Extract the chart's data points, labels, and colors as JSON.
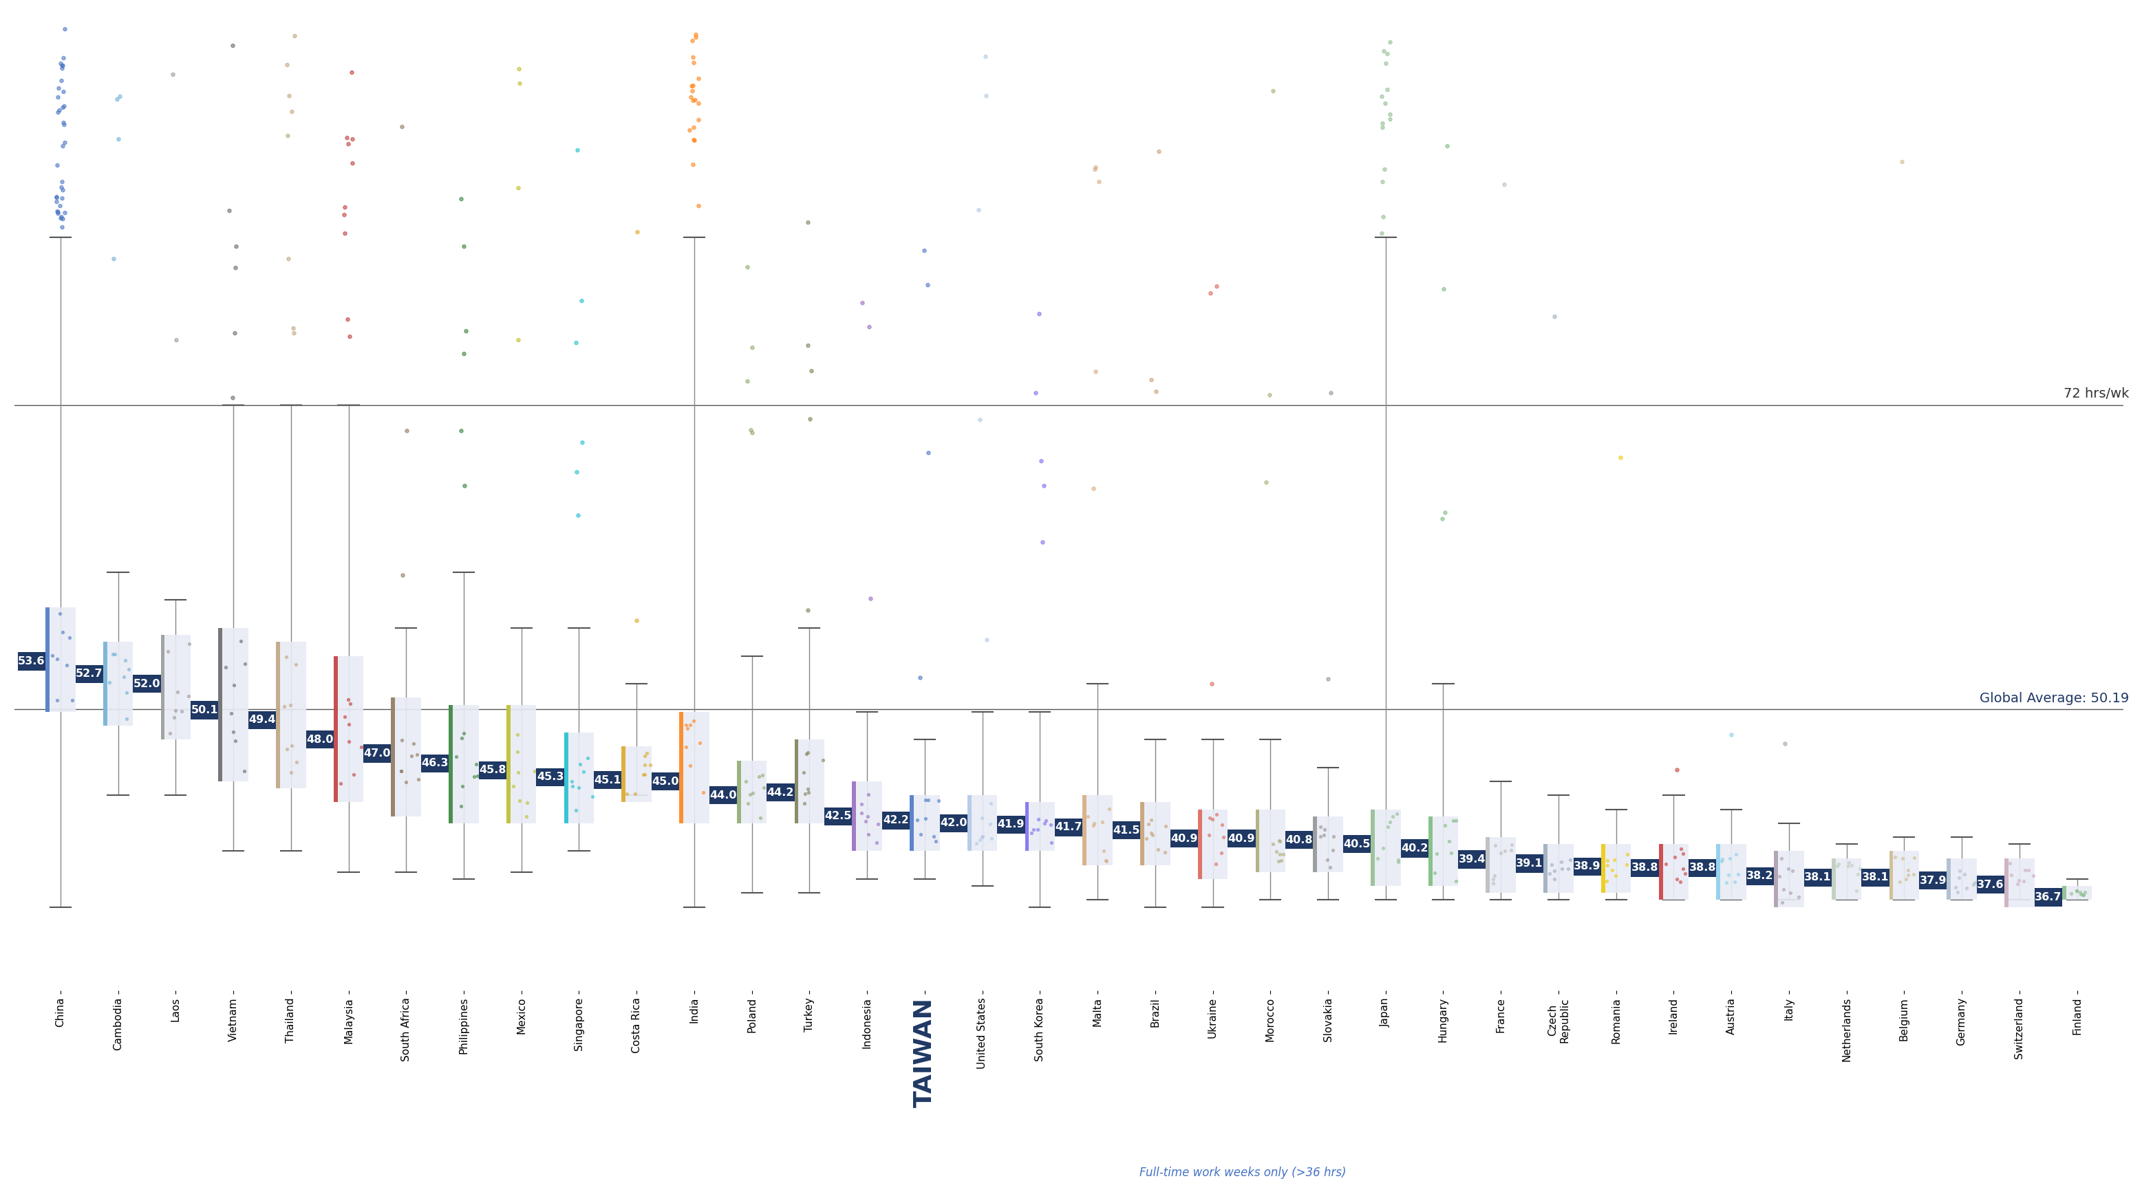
{
  "countries": [
    "China",
    "Cambodia",
    "Laos",
    "Vietnam",
    "Thailand",
    "Malaysia",
    "South Africa",
    "Philippines",
    "Mexico",
    "Singapore",
    "Costa Rica",
    "India",
    "Poland",
    "Turkey",
    "Indonesia",
    "TAIWAN",
    "United States",
    "South Korea",
    "Malta",
    "Brazil",
    "Ukraine",
    "Morocco",
    "Slovakia",
    "Japan",
    "Hungary",
    "France",
    "Czech\nRepublic",
    "Romania",
    "Ireland",
    "Austria",
    "Italy",
    "Netherlands",
    "Belgium",
    "Germany",
    "Switzerland",
    "Finland"
  ],
  "medians": [
    53.6,
    52.7,
    52.0,
    50.1,
    49.4,
    48.0,
    47.0,
    46.3,
    45.8,
    45.3,
    45.1,
    45.0,
    44.0,
    44.2,
    42.5,
    42.2,
    42.0,
    41.9,
    41.7,
    41.5,
    40.9,
    40.9,
    40.8,
    40.5,
    40.2,
    39.4,
    39.1,
    38.9,
    38.8,
    38.8,
    38.2,
    38.1,
    38.1,
    37.9,
    37.6,
    36.7
  ],
  "q1": [
    50.0,
    49.0,
    48.0,
    45.0,
    44.5,
    43.5,
    42.5,
    42.0,
    42.0,
    42.0,
    43.5,
    42.0,
    42.0,
    42.0,
    40.0,
    40.0,
    40.0,
    40.0,
    39.0,
    39.0,
    38.0,
    38.5,
    38.5,
    37.5,
    37.5,
    37.0,
    37.0,
    37.0,
    36.5,
    36.5,
    36.0,
    36.5,
    36.5,
    36.5,
    36.0,
    36.5
  ],
  "q3": [
    57.5,
    55.0,
    55.5,
    56.0,
    55.0,
    54.0,
    51.0,
    50.5,
    50.5,
    48.5,
    47.5,
    50.0,
    46.5,
    48.0,
    45.0,
    44.0,
    44.0,
    43.5,
    44.0,
    43.5,
    43.0,
    43.0,
    42.5,
    43.0,
    42.5,
    41.0,
    40.5,
    40.5,
    40.5,
    40.5,
    40.0,
    39.5,
    40.0,
    39.5,
    39.5,
    37.5
  ],
  "whisker_low": [
    36.0,
    44.0,
    44.0,
    40.0,
    40.0,
    38.5,
    38.5,
    38.0,
    38.5,
    40.0,
    44.0,
    36.0,
    37.0,
    37.0,
    38.0,
    38.0,
    37.5,
    36.0,
    36.5,
    36.0,
    36.0,
    36.5,
    36.5,
    36.5,
    36.5,
    36.5,
    36.5,
    36.5,
    36.5,
    36.5,
    36.5,
    36.5,
    36.5,
    36.5,
    36.5,
    36.5
  ],
  "whisker_high": [
    84.0,
    60.0,
    58.0,
    72.0,
    72.0,
    72.0,
    56.0,
    60.0,
    56.0,
    56.0,
    52.0,
    84.0,
    54.0,
    56.0,
    50.0,
    48.0,
    50.0,
    50.0,
    52.0,
    48.0,
    48.0,
    48.0,
    46.0,
    84.0,
    52.0,
    45.0,
    44.0,
    43.0,
    44.0,
    43.0,
    42.0,
    40.5,
    41.0,
    41.0,
    40.5,
    38.0
  ],
  "colors": [
    "#4472C4",
    "#6BAED6",
    "#969696",
    "#636363",
    "#BDA27A",
    "#C03333",
    "#8B7355",
    "#2E7D32",
    "#BCBC22",
    "#17BECF",
    "#DAA520",
    "#FF7F0E",
    "#8CA868",
    "#7B7B50",
    "#9467BD",
    "#4472C4",
    "#AEC7E8",
    "#7B68EE",
    "#D6A87A",
    "#C69C6D",
    "#DC6050",
    "#AAAA70",
    "#909090",
    "#8FBC8F",
    "#77BB77",
    "#BBBBBB",
    "#99AABB",
    "#EEC900",
    "#CC3333",
    "#87CEEB",
    "#AA99AA",
    "#BBCCBB",
    "#CCBB88",
    "#AABBCC",
    "#CCAABB",
    "#88BB88"
  ],
  "taiwan_index": 15,
  "global_avg": 50.19,
  "line_72": 72.0,
  "background_color": "#FFFFFF",
  "label_bg_color": "#1F3864",
  "label_text_color": "#FFFFFF",
  "box_facecolor": "#E8ECF4",
  "footnote_color": "#4472C4",
  "ref_line_color": "#555555",
  "outlier_counts": [
    35,
    4,
    2,
    6,
    8,
    10,
    3,
    6,
    4,
    6,
    2,
    20,
    5,
    5,
    3,
    4,
    5,
    5,
    5,
    3,
    3,
    3,
    2,
    15,
    4,
    1,
    1,
    1,
    1,
    1,
    1,
    0,
    1,
    0,
    0,
    0
  ]
}
